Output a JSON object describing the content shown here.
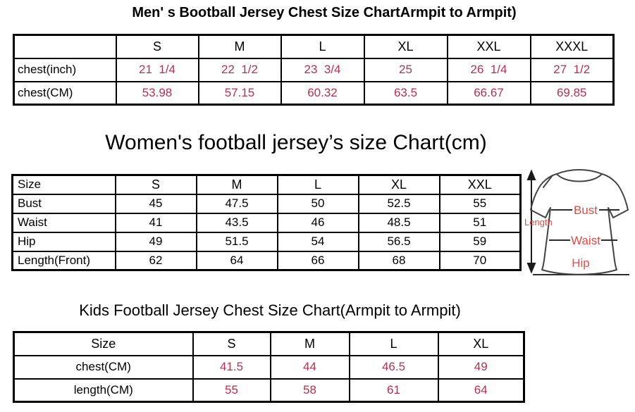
{
  "colors": {
    "table_value_red": "#b2314d",
    "diagram_label_red": "#e24a45"
  },
  "tables": {
    "men": {
      "title": "Men' s Bootball Jersey Chest Size ChartArmpit to Armpit)",
      "columns": [
        "",
        "S",
        "M",
        "L",
        "XL",
        "XXL",
        "XXXL"
      ],
      "rows": [
        {
          "label": "chest(inch)",
          "values": [
            "21  1/4",
            "22  1/2",
            "23  3/4",
            "25",
            "26  1/4",
            "27  1/2"
          ]
        },
        {
          "label": "chest(CM)",
          "values": [
            "53.98",
            "57.15",
            "60.32",
            "63.5",
            "66.67",
            "69.85"
          ]
        }
      ]
    },
    "women": {
      "title": "Women's football jersey’s size Chart(cm)",
      "columns": [
        "Size",
        "S",
        "M",
        "L",
        "XL",
        "XXL"
      ],
      "rows": [
        {
          "label": "Bust",
          "values": [
            "45",
            "47.5",
            "50",
            "52.5",
            "55"
          ]
        },
        {
          "label": "Waist",
          "values": [
            "41",
            "43.5",
            "46",
            "48.5",
            "51"
          ]
        },
        {
          "label": "Hip",
          "values": [
            "49",
            "51.5",
            "54",
            "56.5",
            "59"
          ]
        },
        {
          "label": "Length(Front)",
          "values": [
            "62",
            "64",
            "66",
            "68",
            "70"
          ]
        }
      ]
    },
    "kids": {
      "title": "Kids Football Jersey Chest Size Chart(Armpit to Armpit)",
      "columns": [
        "Size",
        "S",
        "M",
        "L",
        "XL"
      ],
      "rows": [
        {
          "label": "chest(CM)",
          "values": [
            "41.5",
            "44",
            "46.5",
            "49"
          ]
        },
        {
          "label": "length(CM)",
          "values": [
            "55",
            "58",
            "61",
            "64"
          ]
        }
      ]
    }
  },
  "diagram": {
    "length_label": "Length",
    "bust_label": "Bust",
    "waist_label": "Waist",
    "hip_label": "Hip"
  }
}
